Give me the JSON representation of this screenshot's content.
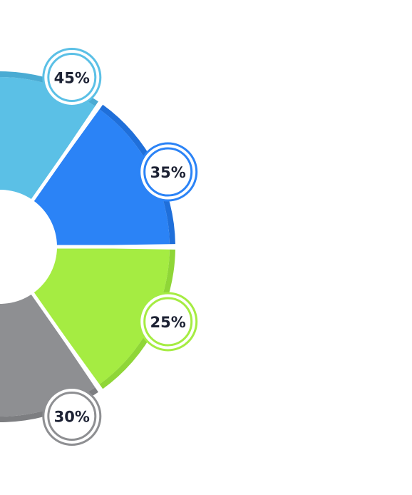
{
  "chart_data": {
    "type": "donut",
    "title": "",
    "segments": [
      {
        "label": "45%",
        "value": 45,
        "color": "#5BC0E6",
        "edge_color": "#4AABD3"
      },
      {
        "label": "35%",
        "value": 35,
        "color": "#2B83F6",
        "edge_color": "#1F6FDA"
      },
      {
        "label": "25%",
        "value": 25,
        "color": "#A5EC42",
        "edge_color": "#8FD637"
      },
      {
        "label": "30%",
        "value": 30,
        "color": "#8E8F92",
        "edge_color": "#7D7E81"
      }
    ]
  }
}
